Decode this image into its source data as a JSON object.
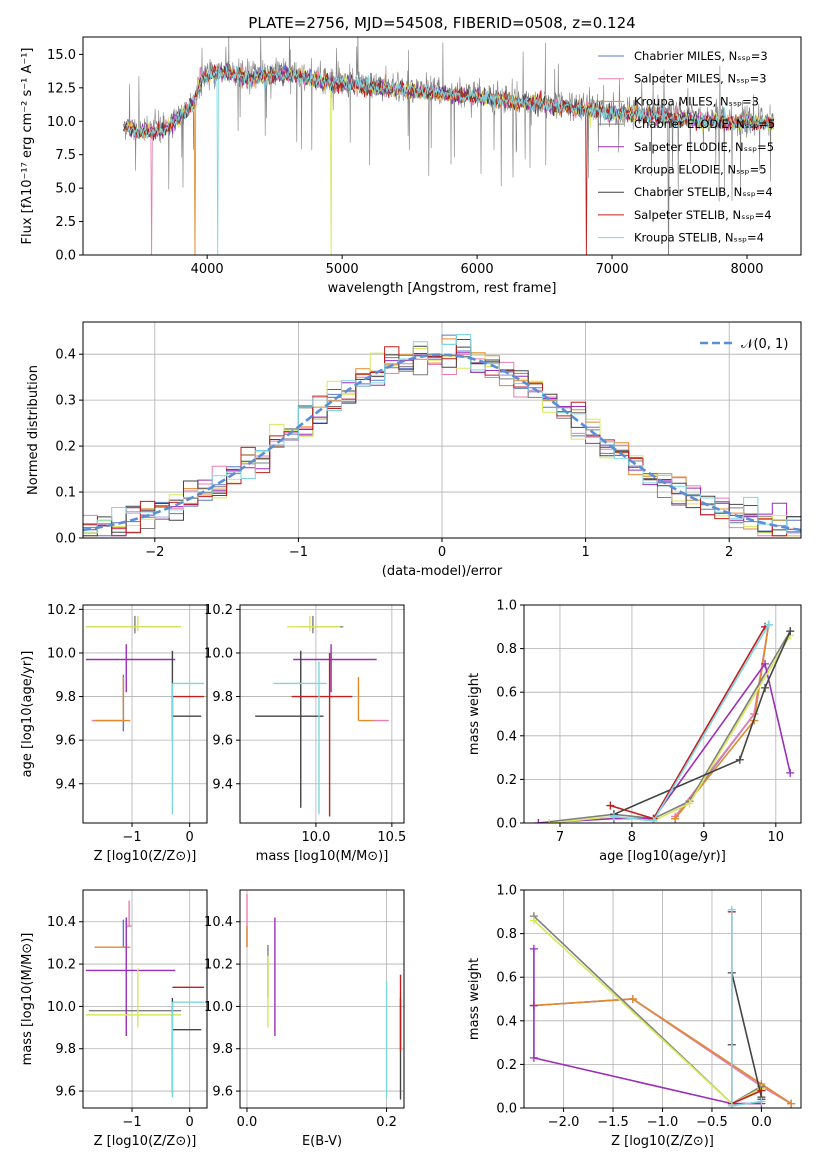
{
  "chart_data": [
    {
      "type": "line",
      "id": "spectrum",
      "title": "PLATE=2756, MJD=54508, FIBERID=0508, z=0.124",
      "xlabel": "wavelength [Angstrom, rest frame]",
      "ylabel": "Flux [fλ10⁻¹⁷ erg cm⁻² s⁻¹ A⁻¹]",
      "xlim": [
        3080,
        8400
      ],
      "ylim": [
        0,
        16.3
      ],
      "xticks": [
        4000,
        5000,
        6000,
        7000,
        8000
      ],
      "yticks": [
        0.0,
        2.5,
        5.0,
        7.5,
        10.0,
        12.5,
        15.0
      ],
      "legend_position": "top-right",
      "data_line": {
        "color": "#808080"
      },
      "continuum_knots": {
        "x": [
          3380,
          3500,
          3700,
          3900,
          3960,
          4100,
          4300,
          4600,
          4900,
          5200,
          5500,
          5800,
          6100,
          6400,
          6700,
          7000,
          7300,
          7600,
          7900,
          8200
        ],
        "y": [
          9.8,
          9.3,
          9.6,
          11.5,
          13.4,
          13.9,
          13.4,
          13.7,
          13.1,
          12.7,
          12.5,
          12.2,
          11.9,
          11.5,
          11.2,
          10.8,
          10.6,
          10.3,
          10.1,
          10.1
        ]
      },
      "series": [
        {
          "name": "Chabrier MILES, N_SSP=3",
          "color": "#5a78c8"
        },
        {
          "name": "Salpeter MILES, N_SSP=3",
          "color": "#e87db0"
        },
        {
          "name": "Kroupa MILES, N_SSP=3",
          "color": "#e08a2c"
        },
        {
          "name": "Chabrier ELODIE, N_SSP=5",
          "color": "#7f7f7f"
        },
        {
          "name": "Salpeter ELODIE, N_SSP=5",
          "color": "#9b2fb8"
        },
        {
          "name": "Kroupa ELODIE, N_SSP=5",
          "color": "#d7e85a"
        },
        {
          "name": "Chabrier STELIB, N_SSP=4",
          "color": "#444444"
        },
        {
          "name": "Salpeter STELIB, N_SSP=4",
          "color": "#c01f1f"
        },
        {
          "name": "Kroupa STELIB, N_SSP=4",
          "color": "#7dd6e0"
        }
      ]
    },
    {
      "type": "histogram",
      "id": "residuals",
      "xlabel": "(data-model)/error",
      "ylabel": "Normed distribution",
      "xlim": [
        -2.5,
        2.5
      ],
      "ylim": [
        0,
        0.47
      ],
      "xticks": [
        -2,
        -1,
        0,
        1,
        2
      ],
      "yticks": [
        0.0,
        0.1,
        0.2,
        0.3,
        0.4
      ],
      "grid": true,
      "legend_position": "top-right",
      "reference_curve": {
        "name": "𝒩(0, 1)",
        "color": "#5a8fd6",
        "style": "dashed",
        "mean": 0,
        "sigma": 1
      },
      "bin_edges_range": [
        -2.5,
        2.5
      ],
      "bin_count": 50,
      "base_profile": "gaussian(0,1) plus per-series bin noise"
    },
    {
      "type": "errorbar",
      "id": "age-vs-Z",
      "xlabel": "Z [log10(Z/Z⊙)]",
      "ylabel": "age  [log10(age/yr)]",
      "xlim": [
        -1.85,
        0.3
      ],
      "ylim": [
        9.22,
        10.22
      ],
      "xticks": [
        -1,
        0
      ],
      "yticks": [
        9.4,
        9.6,
        9.8,
        10.0,
        10.2
      ],
      "points": [
        {
          "series": "Chabrier MILES",
          "x": -1.15,
          "xerr": [
            0.0,
            0.0
          ],
          "y": 9.72,
          "yerr": [
            0.08,
            0.18
          ]
        },
        {
          "series": "Salpeter MILES",
          "x": -1.2,
          "xerr": [
            0.5,
            0.08
          ],
          "y": 9.69,
          "yerr": [
            0.0,
            0.0
          ]
        },
        {
          "series": "Kroupa MILES",
          "x": -1.15,
          "xerr": [
            0.5,
            0.12
          ],
          "y": 9.69,
          "yerr": [
            0.0,
            0.2
          ]
        },
        {
          "series": "Chabrier ELODIE",
          "x": -0.95,
          "xerr": [
            0.85,
            0.8
          ],
          "y": 10.12,
          "yerr": [
            0.03,
            0.05
          ]
        },
        {
          "series": "Salpeter ELODIE",
          "x": -1.1,
          "xerr": [
            0.7,
            0.85
          ],
          "y": 9.97,
          "yerr": [
            0.15,
            0.07
          ]
        },
        {
          "series": "Kroupa ELODIE",
          "x": -0.9,
          "xerr": [
            0.9,
            0.75
          ],
          "y": 10.12,
          "yerr": [
            0.02,
            0.05
          ]
        },
        {
          "series": "Chabrier STELIB",
          "x": -0.3,
          "xerr": [
            0.0,
            0.5
          ],
          "y": 9.71,
          "yerr": [
            0.0,
            0.3
          ]
        },
        {
          "series": "Salpeter STELIB",
          "x": -0.3,
          "xerr": [
            0.0,
            0.55
          ],
          "y": 9.8,
          "yerr": [
            0.2,
            0.0
          ]
        },
        {
          "series": "Kroupa STELIB",
          "x": -0.3,
          "xerr": [
            0.0,
            0.55
          ],
          "y": 9.86,
          "yerr": [
            0.6,
            0.0
          ]
        }
      ]
    },
    {
      "type": "errorbar",
      "id": "age-vs-mass",
      "xlabel": "mass [log10(M/M⊙)]",
      "ylabel": "",
      "xlim": [
        9.5,
        10.58
      ],
      "ylim": [
        9.22,
        10.22
      ],
      "xticks": [
        10.0,
        10.5
      ],
      "yticks": [
        9.4,
        9.6,
        9.8,
        10.0,
        10.2
      ],
      "points": [
        {
          "series": "Chabrier MILES",
          "x": 10.28,
          "xerr": [
            0.0,
            0.0
          ],
          "y": 9.69,
          "yerr": [
            0.0,
            0.0
          ]
        },
        {
          "series": "Salpeter MILES",
          "x": 10.38,
          "xerr": [
            0.0,
            0.1
          ],
          "y": 9.69,
          "yerr": [
            0.0,
            0.0
          ]
        },
        {
          "series": "Kroupa MILES",
          "x": 10.28,
          "xerr": [
            0.0,
            0.1
          ],
          "y": 9.69,
          "yerr": [
            0.0,
            0.2
          ]
        },
        {
          "series": "Chabrier ELODIE",
          "x": 9.98,
          "xerr": [
            0.1,
            0.2
          ],
          "y": 10.12,
          "yerr": [
            0.03,
            0.05
          ]
        },
        {
          "series": "Salpeter ELODIE",
          "x": 10.1,
          "xerr": [
            0.25,
            0.3
          ],
          "y": 9.97,
          "yerr": [
            0.15,
            0.07
          ]
        },
        {
          "series": "Kroupa ELODIE",
          "x": 9.96,
          "xerr": [
            0.15,
            0.2
          ],
          "y": 10.12,
          "yerr": [
            0.02,
            0.05
          ]
        },
        {
          "series": "Chabrier STELIB",
          "x": 9.9,
          "xerr": [
            0.3,
            0.15
          ],
          "y": 9.71,
          "yerr": [
            0.42,
            0.3
          ]
        },
        {
          "series": "Salpeter STELIB",
          "x": 10.09,
          "xerr": [
            0.25,
            0.15
          ],
          "y": 9.8,
          "yerr": [
            0.55,
            0.2
          ]
        },
        {
          "series": "Kroupa STELIB",
          "x": 10.02,
          "xerr": [
            0.3,
            0.05
          ],
          "y": 9.86,
          "yerr": [
            0.6,
            0.1
          ]
        }
      ]
    },
    {
      "type": "line",
      "id": "weight-vs-age",
      "xlabel": "age  [log10(age/yr)]",
      "ylabel": "mass weight",
      "xlim": [
        6.5,
        10.35
      ],
      "ylim": [
        0,
        1.0
      ],
      "xticks": [
        7,
        8,
        9,
        10
      ],
      "yticks": [
        0.0,
        0.2,
        0.4,
        0.6,
        0.8,
        1.0
      ],
      "grid": true,
      "series": [
        {
          "name": "Chabrier MILES",
          "x": [
            8.6,
            9.7,
            9.9
          ],
          "y": [
            0.02,
            0.5,
            0.91
          ]
        },
        {
          "name": "Salpeter MILES",
          "x": [
            8.6,
            9.7,
            9.9
          ],
          "y": [
            0.03,
            0.5,
            0.91
          ]
        },
        {
          "name": "Kroupa MILES",
          "x": [
            8.6,
            9.7,
            9.9
          ],
          "y": [
            0.02,
            0.47,
            0.91
          ]
        },
        {
          "name": "Chabrier ELODIE",
          "x": [
            6.7,
            7.75,
            8.3,
            8.8,
            10.2
          ],
          "y": [
            0.0,
            0.04,
            0.02,
            0.1,
            0.88
          ]
        },
        {
          "name": "Salpeter ELODIE",
          "x": [
            6.7,
            7.75,
            8.3,
            9.85,
            10.2
          ],
          "y": [
            0.0,
            0.02,
            0.02,
            0.73,
            0.23
          ]
        },
        {
          "name": "Kroupa ELODIE",
          "x": [
            6.85,
            7.75,
            8.3,
            8.8,
            10.2
          ],
          "y": [
            0.0,
            0.03,
            0.01,
            0.09,
            0.86
          ]
        },
        {
          "name": "Chabrier STELIB",
          "x": [
            7.75,
            9.5,
            9.85,
            10.2
          ],
          "y": [
            0.04,
            0.29,
            0.62,
            0.88
          ]
        },
        {
          "name": "Salpeter STELIB",
          "x": [
            7.7,
            8.3,
            9.85
          ],
          "y": [
            0.08,
            0.02,
            0.9
          ]
        },
        {
          "name": "Kroupa STELIB",
          "x": [
            7.75,
            8.3,
            9.9
          ],
          "y": [
            0.03,
            0.01,
            0.91
          ]
        }
      ]
    },
    {
      "type": "errorbar",
      "id": "mass-vs-Z",
      "xlabel": "Z [log10(Z/Z⊙)]",
      "ylabel": "mass [log10(M/M⊙)]",
      "xlim": [
        -1.85,
        0.3
      ],
      "ylim": [
        9.52,
        10.55
      ],
      "xticks": [
        -1,
        0
      ],
      "yticks": [
        9.6,
        9.8,
        10.0,
        10.2,
        10.4
      ],
      "points": [
        {
          "series": "Chabrier MILES",
          "x": -1.15,
          "xerr": [
            0.0,
            0.0
          ],
          "y": 10.28,
          "yerr": [
            0.0,
            0.13
          ]
        },
        {
          "series": "Salpeter MILES",
          "x": -1.05,
          "xerr": [
            0.05,
            0.05
          ],
          "y": 10.38,
          "yerr": [
            0.0,
            0.12
          ]
        },
        {
          "series": "Kroupa MILES",
          "x": -1.15,
          "xerr": [
            0.5,
            0.12
          ],
          "y": 10.28,
          "yerr": [
            0.0,
            0.0
          ]
        },
        {
          "series": "Chabrier ELODIE",
          "x": -0.95,
          "xerr": [
            0.8,
            0.8
          ],
          "y": 9.98,
          "yerr": [
            0.0,
            0.0
          ]
        },
        {
          "series": "Salpeter ELODIE",
          "x": -1.1,
          "xerr": [
            0.7,
            0.85
          ],
          "y": 10.17,
          "yerr": [
            0.31,
            0.25
          ]
        },
        {
          "series": "Kroupa ELODIE",
          "x": -0.9,
          "xerr": [
            0.9,
            0.75
          ],
          "y": 9.96,
          "yerr": [
            0.06,
            0.22
          ]
        },
        {
          "series": "Chabrier STELIB",
          "x": -0.3,
          "xerr": [
            0.0,
            0.5
          ],
          "y": 9.89,
          "yerr": [
            0.3,
            0.15
          ]
        },
        {
          "series": "Salpeter STELIB",
          "x": -0.3,
          "xerr": [
            0.0,
            0.55
          ],
          "y": 10.09,
          "yerr": [
            0.0,
            0.0
          ]
        },
        {
          "series": "Kroupa STELIB",
          "x": -0.3,
          "xerr": [
            0.0,
            0.55
          ],
          "y": 10.02,
          "yerr": [
            0.45,
            0.0
          ]
        }
      ]
    },
    {
      "type": "errorbar",
      "id": "mass-vs-ebv",
      "xlabel": "E(B-V)",
      "ylabel": "",
      "xlim": [
        -0.01,
        0.225
      ],
      "ylim": [
        9.52,
        10.55
      ],
      "xticks": [
        0.0,
        0.2
      ],
      "yticks": [
        9.6,
        9.8,
        10.0,
        10.2,
        10.4
      ],
      "points": [
        {
          "series": "Chabrier MILES",
          "x": 0.0,
          "xerr": [
            0.0,
            0.0
          ],
          "y": 10.28,
          "yerr": [
            0.0,
            0.0
          ]
        },
        {
          "series": "Salpeter MILES",
          "x": 0.0,
          "xerr": [
            0.0,
            0.0
          ],
          "y": 10.38,
          "yerr": [
            0.1,
            0.15
          ]
        },
        {
          "series": "Kroupa MILES",
          "x": 0.0,
          "xerr": [
            0.0,
            0.0
          ],
          "y": 10.28,
          "yerr": [
            0.0,
            0.1
          ]
        },
        {
          "series": "Chabrier ELODIE",
          "x": 0.03,
          "xerr": [
            0.0,
            0.0
          ],
          "y": 10.2,
          "yerr": [
            0.16,
            0.09
          ]
        },
        {
          "series": "Salpeter ELODIE",
          "x": 0.04,
          "xerr": [
            0.0,
            0.0
          ],
          "y": 10.17,
          "yerr": [
            0.31,
            0.25
          ]
        },
        {
          "series": "Kroupa ELODIE",
          "x": 0.03,
          "xerr": [
            0.0,
            0.0
          ],
          "y": 10.1,
          "yerr": [
            0.2,
            0.14
          ]
        },
        {
          "series": "Chabrier STELIB",
          "x": 0.22,
          "xerr": [
            0.0,
            0.0
          ],
          "y": 9.89,
          "yerr": [
            0.33,
            0.15
          ]
        },
        {
          "series": "Salpeter STELIB",
          "x": 0.22,
          "xerr": [
            0.0,
            0.0
          ],
          "y": 10.09,
          "yerr": [
            0.3,
            0.06
          ]
        },
        {
          "series": "Kroupa STELIB",
          "x": 0.2,
          "xerr": [
            0.0,
            0.0
          ],
          "y": 10.02,
          "yerr": [
            0.45,
            0.1
          ]
        }
      ]
    },
    {
      "type": "line",
      "id": "weight-vs-Z",
      "xlabel": "Z [log10(Z/Z⊙)]",
      "ylabel": "mass weight",
      "xlim": [
        -2.4,
        0.4
      ],
      "ylim": [
        0,
        1.0
      ],
      "xticks": [
        -2.0,
        -1.5,
        -1.0,
        -0.5,
        0.0
      ],
      "yticks": [
        0.0,
        0.2,
        0.4,
        0.6,
        0.8,
        1.0
      ],
      "grid": true,
      "series": [
        {
          "name": "Chabrier MILES",
          "x": [
            -2.3,
            -1.3,
            0.0,
            0.3
          ],
          "y": [
            0.47,
            0.5,
            0.1,
            0.02
          ]
        },
        {
          "name": "Salpeter MILES",
          "x": [
            -2.3,
            -1.3,
            0.0,
            0.3
          ],
          "y": [
            0.47,
            0.5,
            0.1,
            0.02
          ]
        },
        {
          "name": "Kroupa MILES",
          "x": [
            -2.3,
            -1.3,
            0.0,
            0.3
          ],
          "y": [
            0.47,
            0.5,
            0.11,
            0.02
          ]
        },
        {
          "name": "Chabrier ELODIE",
          "x": [
            -2.3,
            -0.3,
            0.0
          ],
          "y": [
            0.88,
            0.02,
            0.1
          ]
        },
        {
          "name": "Salpeter ELODIE",
          "x": [
            -2.3,
            -2.3,
            -2.3,
            -0.3,
            0.0
          ],
          "y": [
            0.73,
            0.47,
            0.23,
            0.02,
            0.02
          ]
        },
        {
          "name": "Kroupa ELODIE",
          "x": [
            -2.3,
            -0.3,
            0.0
          ],
          "y": [
            0.86,
            0.02,
            0.09
          ]
        },
        {
          "name": "Chabrier STELIB",
          "x": [
            -0.3,
            -0.3,
            0.0,
            0.0
          ],
          "y": [
            0.29,
            0.62,
            0.05,
            0.04
          ]
        },
        {
          "name": "Salpeter STELIB",
          "x": [
            -0.3,
            -0.3,
            0.0
          ],
          "y": [
            0.9,
            0.02,
            0.08
          ]
        },
        {
          "name": "Kroupa STELIB",
          "x": [
            -0.3,
            -0.3,
            0.0
          ],
          "y": [
            0.91,
            0.01,
            0.03
          ]
        }
      ]
    }
  ]
}
